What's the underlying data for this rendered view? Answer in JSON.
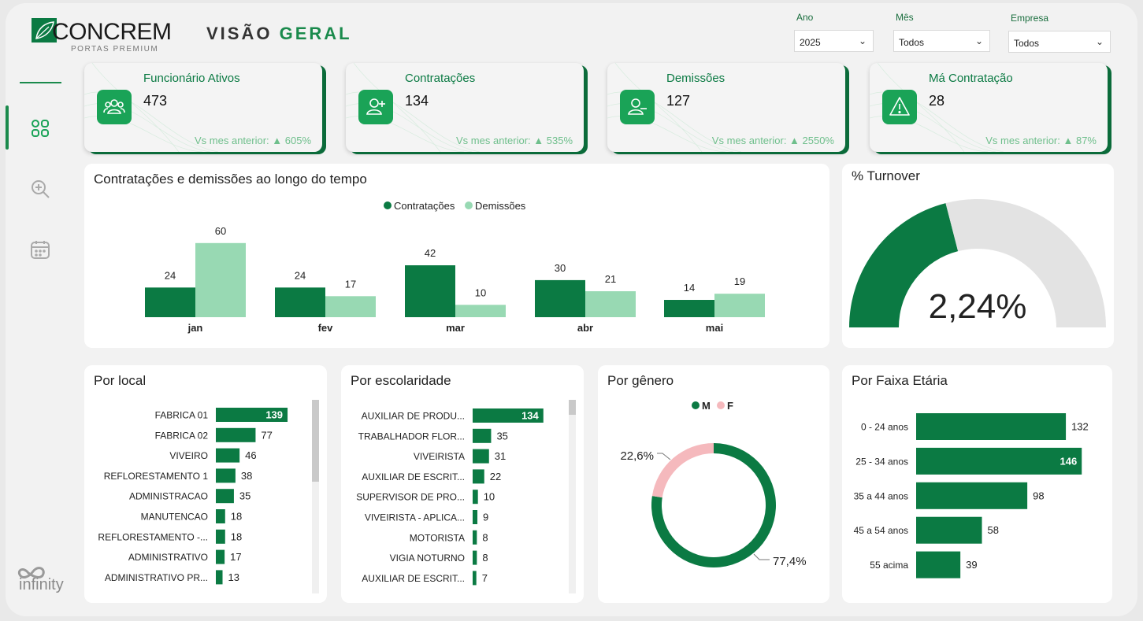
{
  "header": {
    "logo_text": "CONCREM",
    "logo_sub": "PORTAS PREMIUM",
    "title_1": "VISÃO",
    "title_2": "GERAL"
  },
  "filters": [
    {
      "label": "Ano",
      "value": "2025"
    },
    {
      "label": "Mês",
      "value": "Todos"
    },
    {
      "label": "Empresa",
      "value": "Todos"
    }
  ],
  "sidebar": {
    "items": [
      "dashboard-icon",
      "zoom-in-icon",
      "calendar-icon"
    ]
  },
  "kpis": [
    {
      "title": "Funcionário Ativos",
      "value": "473",
      "vs": "Vs mes anterior: ▲ 605%",
      "icon": "group-icon"
    },
    {
      "title": "Contratações",
      "value": "134",
      "vs": "Vs mes anterior: ▲ 535%",
      "icon": "add-user-icon"
    },
    {
      "title": "Demissões",
      "value": "127",
      "vs": "Vs mes anterior: ▲ 2550%",
      "icon": "remove-user-icon"
    },
    {
      "title": "Má Contratação",
      "value": "28",
      "vs": "Vs mes anterior: ▲ 87%",
      "icon": "warning-icon"
    }
  ],
  "colors": {
    "dark_green": "#0b7a43",
    "light_green": "#98d9b3",
    "pink": "#f5b9bd",
    "gray": "#e3e3e3",
    "kpi_icon": "#1aa357"
  },
  "brand": {
    "footer": "infinity"
  },
  "chart_data": [
    {
      "type": "bar",
      "title": "Contratações e demissões ao longo do tempo",
      "categories": [
        "jan",
        "fev",
        "mar",
        "abr",
        "mai"
      ],
      "series": [
        {
          "name": "Contratações",
          "values": [
            24,
            24,
            42,
            30,
            14
          ]
        },
        {
          "name": "Demissões",
          "values": [
            60,
            17,
            10,
            21,
            19
          ]
        }
      ],
      "legend": "top-center"
    },
    {
      "type": "gauge",
      "title": "% Turnover",
      "value": 2.24,
      "value_label": "2,24%",
      "fill_fraction": 0.42
    },
    {
      "type": "bar",
      "title": "Por local",
      "orientation": "horizontal",
      "categories": [
        "FABRICA 01",
        "FABRICA 02",
        "VIVEIRO",
        "REFLORESTAMENTO 1",
        "ADMINISTRACAO",
        "MANUTENCAO",
        "REFLORESTAMENTO -...",
        "ADMINISTRATIVO",
        "ADMINISTRATIVO PR..."
      ],
      "values": [
        139,
        77,
        46,
        38,
        35,
        18,
        18,
        17,
        13
      ]
    },
    {
      "type": "bar",
      "title": "Por escolaridade",
      "orientation": "horizontal",
      "categories": [
        "AUXILIAR DE PRODU...",
        "TRABALHADOR FLOR...",
        "VIVEIRISTA",
        "AUXILIAR DE ESCRIT...",
        "SUPERVISOR DE PRO...",
        "VIVEIRISTA - APLICA...",
        "MOTORISTA",
        "VIGIA NOTURNO",
        "AUXILIAR DE ESCRIT..."
      ],
      "values": [
        134,
        35,
        31,
        22,
        10,
        9,
        8,
        8,
        7
      ]
    },
    {
      "type": "pie",
      "title": "Por gênero",
      "categories": [
        "M",
        "F"
      ],
      "values": [
        77.4,
        22.6
      ],
      "labels": [
        "77,4%",
        "22,6%"
      ],
      "legend": "top-center"
    },
    {
      "type": "bar",
      "title": "Por Faixa Etária",
      "orientation": "horizontal",
      "categories": [
        "0 - 24 anos",
        "25 - 34 anos",
        "35 a 44 anos",
        "45 a 54 anos",
        "55 acima"
      ],
      "values": [
        132,
        146,
        98,
        58,
        39
      ]
    }
  ]
}
